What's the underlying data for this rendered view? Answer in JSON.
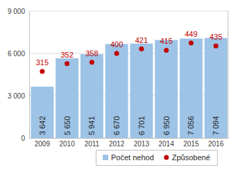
{
  "chart_data": {
    "type": "bar",
    "categories": [
      "2009",
      "2010",
      "2011",
      "2012",
      "2013",
      "2014",
      "2015",
      "2016"
    ],
    "series": [
      {
        "name": "Počet nehod",
        "type": "bar",
        "color": "#9dc3e6",
        "values": [
          3642,
          5650,
          5941,
          6670,
          6701,
          6950,
          7056,
          7094
        ],
        "value_labels": [
          "3 642",
          "5 650",
          "5 941",
          "6 670",
          "6 701",
          "6 950",
          "7 056",
          "7 094"
        ]
      },
      {
        "name": "Způsobené",
        "type": "scatter",
        "color": "#c00000",
        "marker": "circle",
        "axis": "y2",
        "values": [
          315,
          352,
          358,
          400,
          421,
          415,
          449,
          435
        ]
      }
    ],
    "ylim": [
      0,
      9000
    ],
    "yticks": [
      0,
      {
        "value": 3000,
        "label": "3 000"
      },
      {
        "value": 6000,
        "label": "6 000"
      },
      {
        "value": 9000,
        "label": "9 000"
      }
    ],
    "y2lim": [
      0,
      600
    ],
    "grid": true,
    "data_labels": true,
    "legend": "bottom"
  }
}
